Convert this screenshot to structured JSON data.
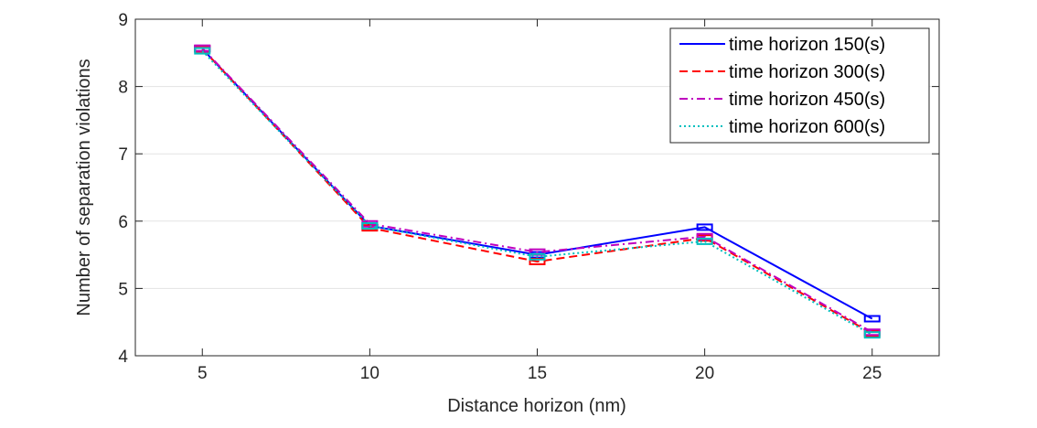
{
  "chart_data": {
    "type": "line",
    "title": "",
    "xlabel": "Distance horizon (nm)",
    "ylabel": "Number of separation violations",
    "x": [
      5,
      10,
      15,
      20,
      25
    ],
    "xlim": [
      3,
      27
    ],
    "ylim": [
      4,
      9
    ],
    "xticks": [
      "5",
      "10",
      "15",
      "20",
      "25"
    ],
    "yticks": [
      "4",
      "5",
      "6",
      "7",
      "8",
      "9"
    ],
    "grid": "horizontal",
    "legend_position": "top-right",
    "series": [
      {
        "name": "time horizon 150(s)",
        "color": "#0000ff",
        "style": "solid",
        "values": [
          8.56,
          5.93,
          5.5,
          5.91,
          4.55
        ]
      },
      {
        "name": "time horizon 300(s)",
        "color": "#ff0000",
        "style": "dashed",
        "values": [
          8.56,
          5.9,
          5.4,
          5.75,
          4.33
        ]
      },
      {
        "name": "time horizon 450(s)",
        "color": "#bf00bf",
        "style": "dashdot",
        "values": [
          8.57,
          5.96,
          5.54,
          5.77,
          4.35
        ]
      },
      {
        "name": "time horizon 600(s)",
        "color": "#00bfbf",
        "style": "dotted",
        "values": [
          8.53,
          5.93,
          5.47,
          5.7,
          4.31
        ]
      }
    ]
  }
}
